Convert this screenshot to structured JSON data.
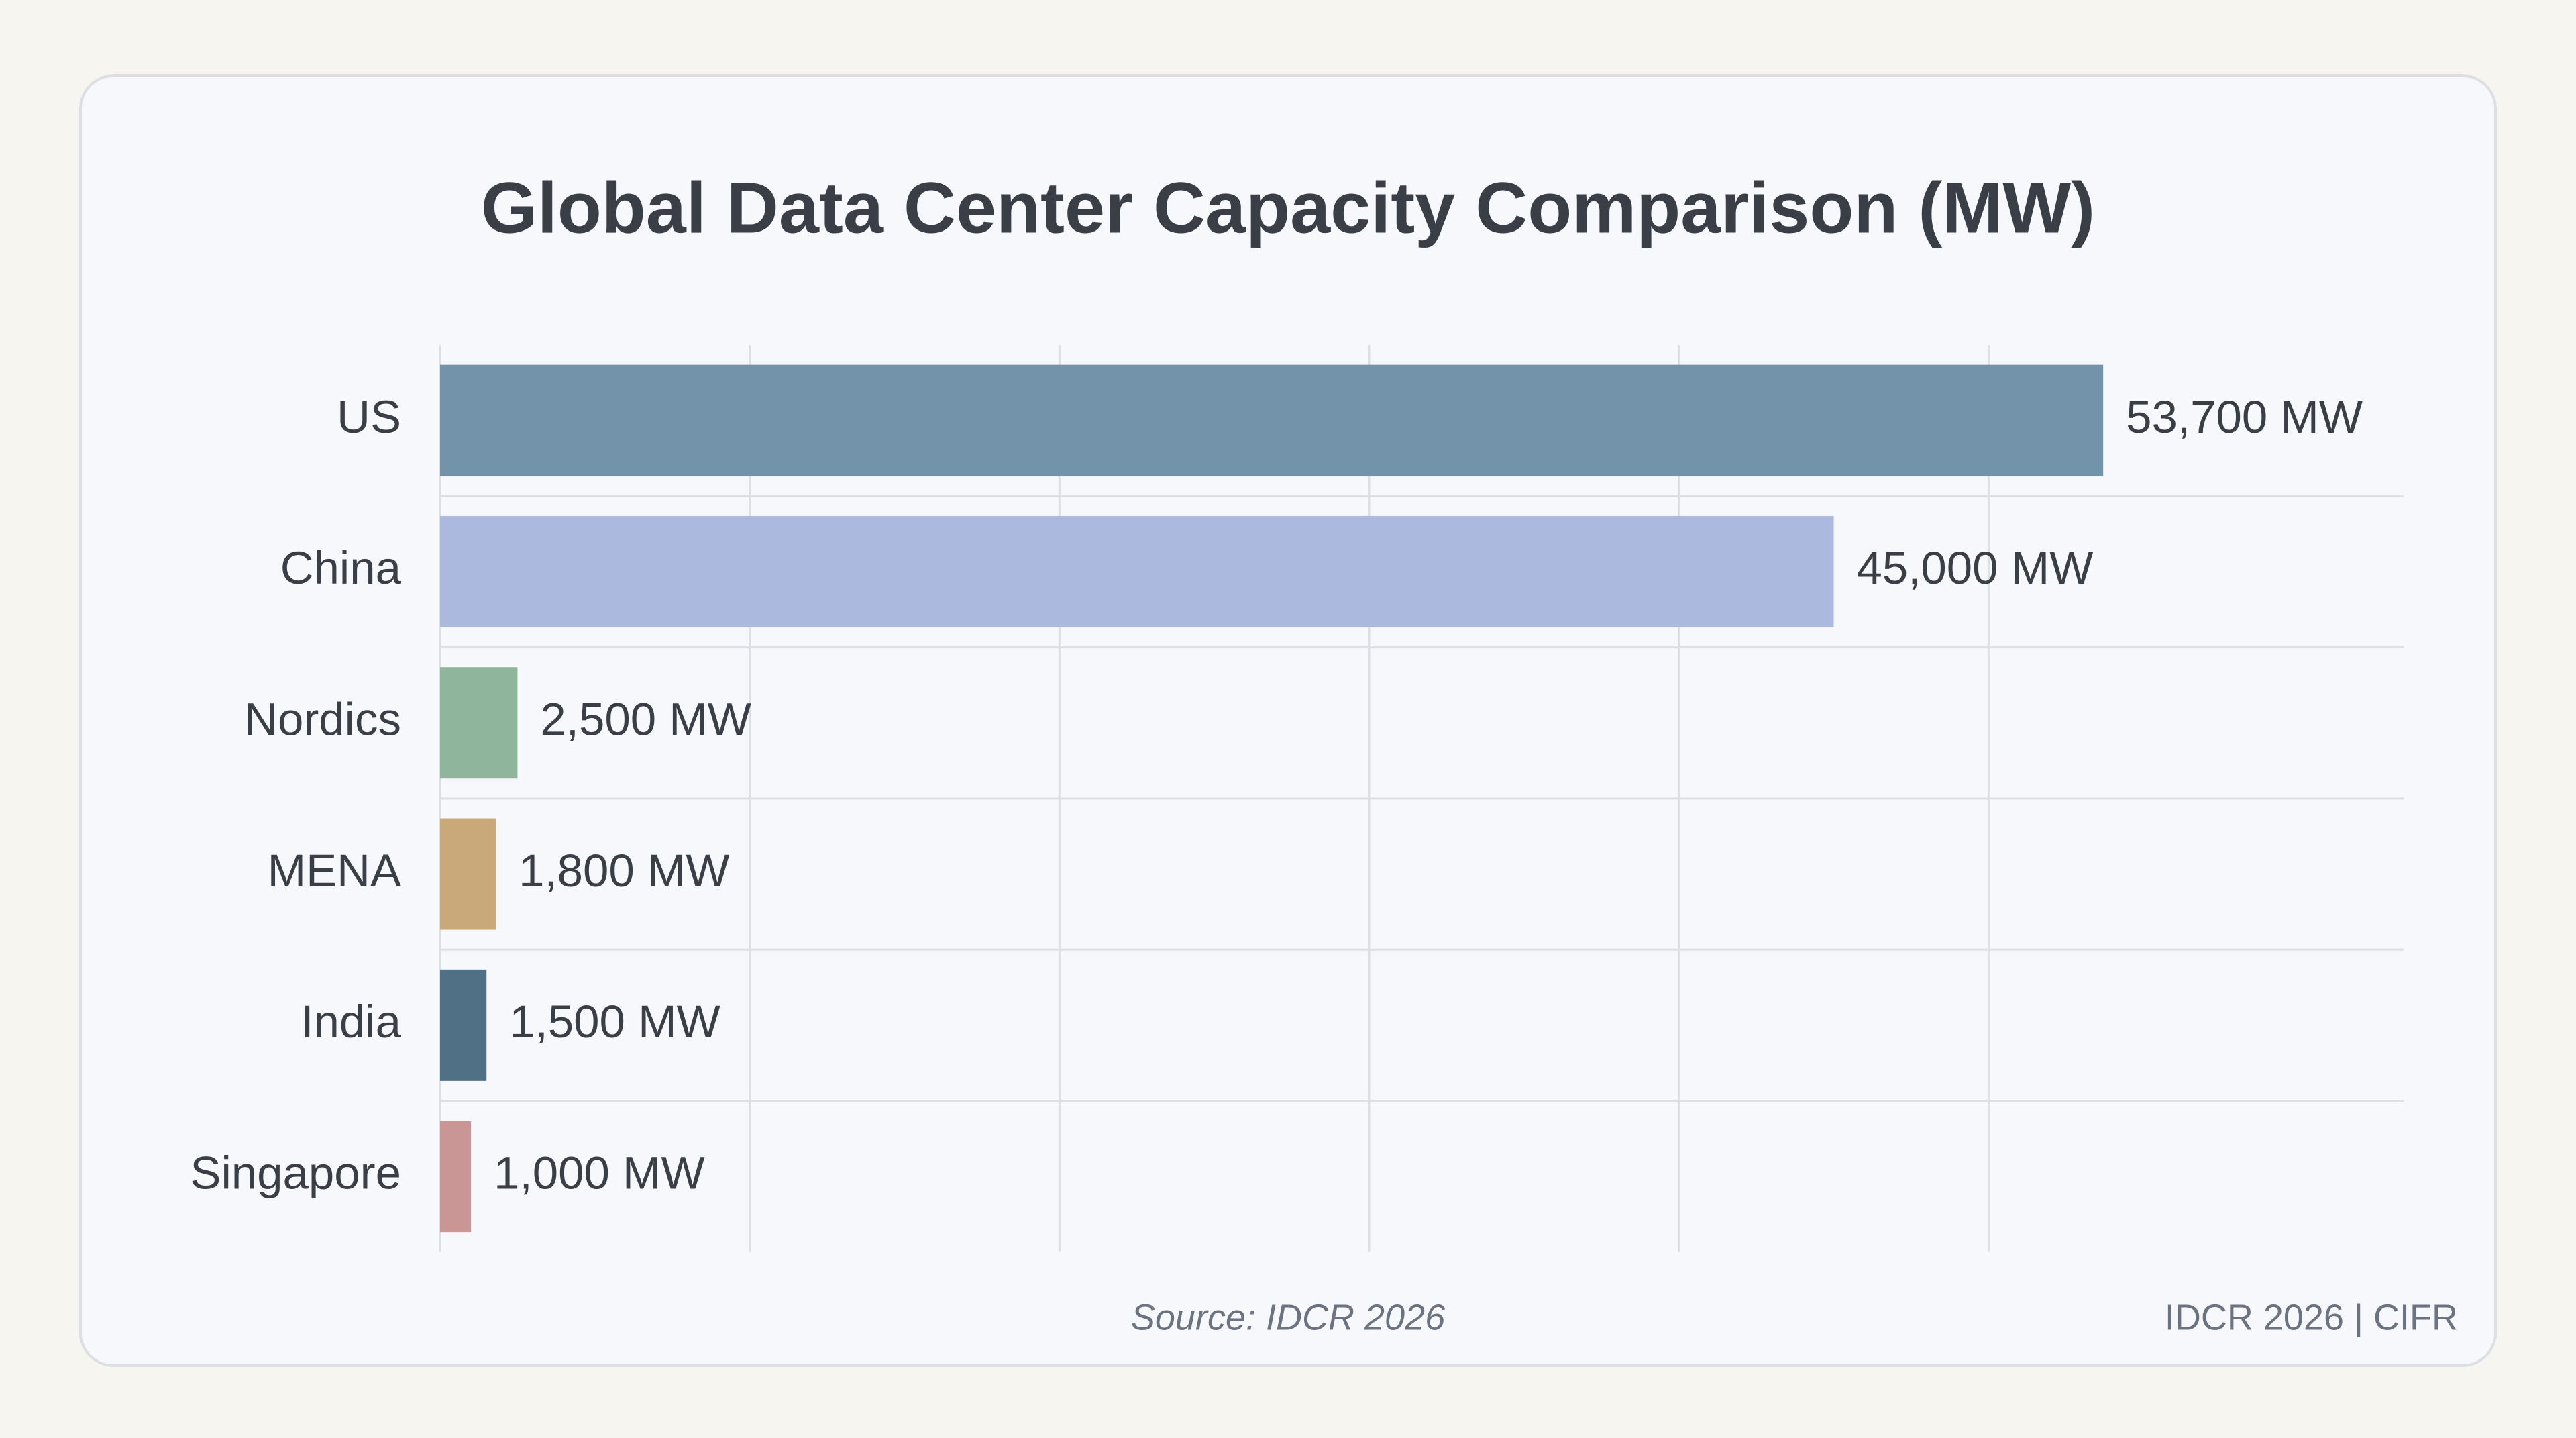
{
  "chart_data": {
    "type": "bar",
    "orientation": "horizontal",
    "title": "Global Data Center Capacity Comparison (MW)",
    "categories": [
      "US",
      "China",
      "Nordics",
      "MENA",
      "India",
      "Singapore"
    ],
    "values": [
      53700,
      45000,
      2500,
      1800,
      1500,
      1000
    ],
    "value_labels": [
      "53,700 MW",
      "45,000 MW",
      "2,500 MW",
      "1,800 MW",
      "1,500 MW",
      "1,000 MW"
    ],
    "colors": [
      "#7393aa",
      "#abb9de",
      "#8fb59c",
      "#c9a97a",
      "#4f7085",
      "#c99595"
    ],
    "xlim": [
      0,
      63400
    ],
    "xticks": [
      0,
      10000,
      20000,
      30000,
      40000,
      50000
    ],
    "grid": true,
    "source": "Source: IDCR 2026",
    "footer": "IDCR 2026 | CIFR"
  }
}
